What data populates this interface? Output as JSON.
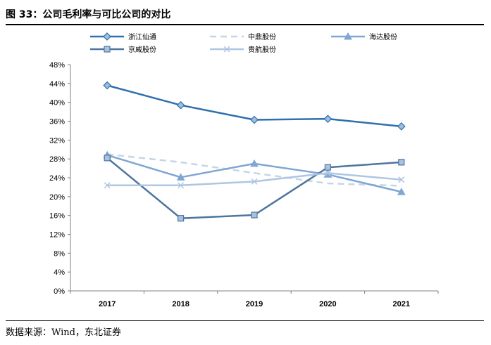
{
  "header": {
    "title": "图 33：公司毛利率与可比公司的对比"
  },
  "footer": {
    "source": "数据来源：Wind，东北证券"
  },
  "chart_data": {
    "type": "line",
    "title": "公司毛利率与可比公司的对比",
    "categories": [
      "2017",
      "2018",
      "2019",
      "2020",
      "2021"
    ],
    "yticks": [
      "0%",
      "4%",
      "8%",
      "12%",
      "16%",
      "20%",
      "24%",
      "28%",
      "32%",
      "36%",
      "40%",
      "44%",
      "48%"
    ],
    "ylim": [
      0,
      48
    ],
    "grid": false,
    "legend_position": "top",
    "series": [
      {
        "name": "浙江仙通",
        "values": [
          43.6,
          39.4,
          36.3,
          36.5,
          34.9
        ],
        "color": "#2e6fac",
        "marker": "diamond",
        "dash": ""
      },
      {
        "name": "中鼎股份",
        "values": [
          29.0,
          27.3,
          25.0,
          22.8,
          22.3
        ],
        "color": "#c5d5e6",
        "marker": "none",
        "dash": "9,6"
      },
      {
        "name": "海达股份",
        "values": [
          28.8,
          24.1,
          27.0,
          24.7,
          21.0
        ],
        "color": "#7fa6d4",
        "marker": "triangle",
        "dash": ""
      },
      {
        "name": "京威股份",
        "values": [
          28.2,
          15.4,
          16.1,
          26.2,
          27.3
        ],
        "color": "#4d759d",
        "marker": "square",
        "dash": ""
      },
      {
        "name": "贵航股份",
        "values": [
          22.4,
          22.4,
          23.2,
          25.0,
          23.6
        ],
        "color": "#aec6e2",
        "marker": "x",
        "dash": ""
      }
    ]
  }
}
